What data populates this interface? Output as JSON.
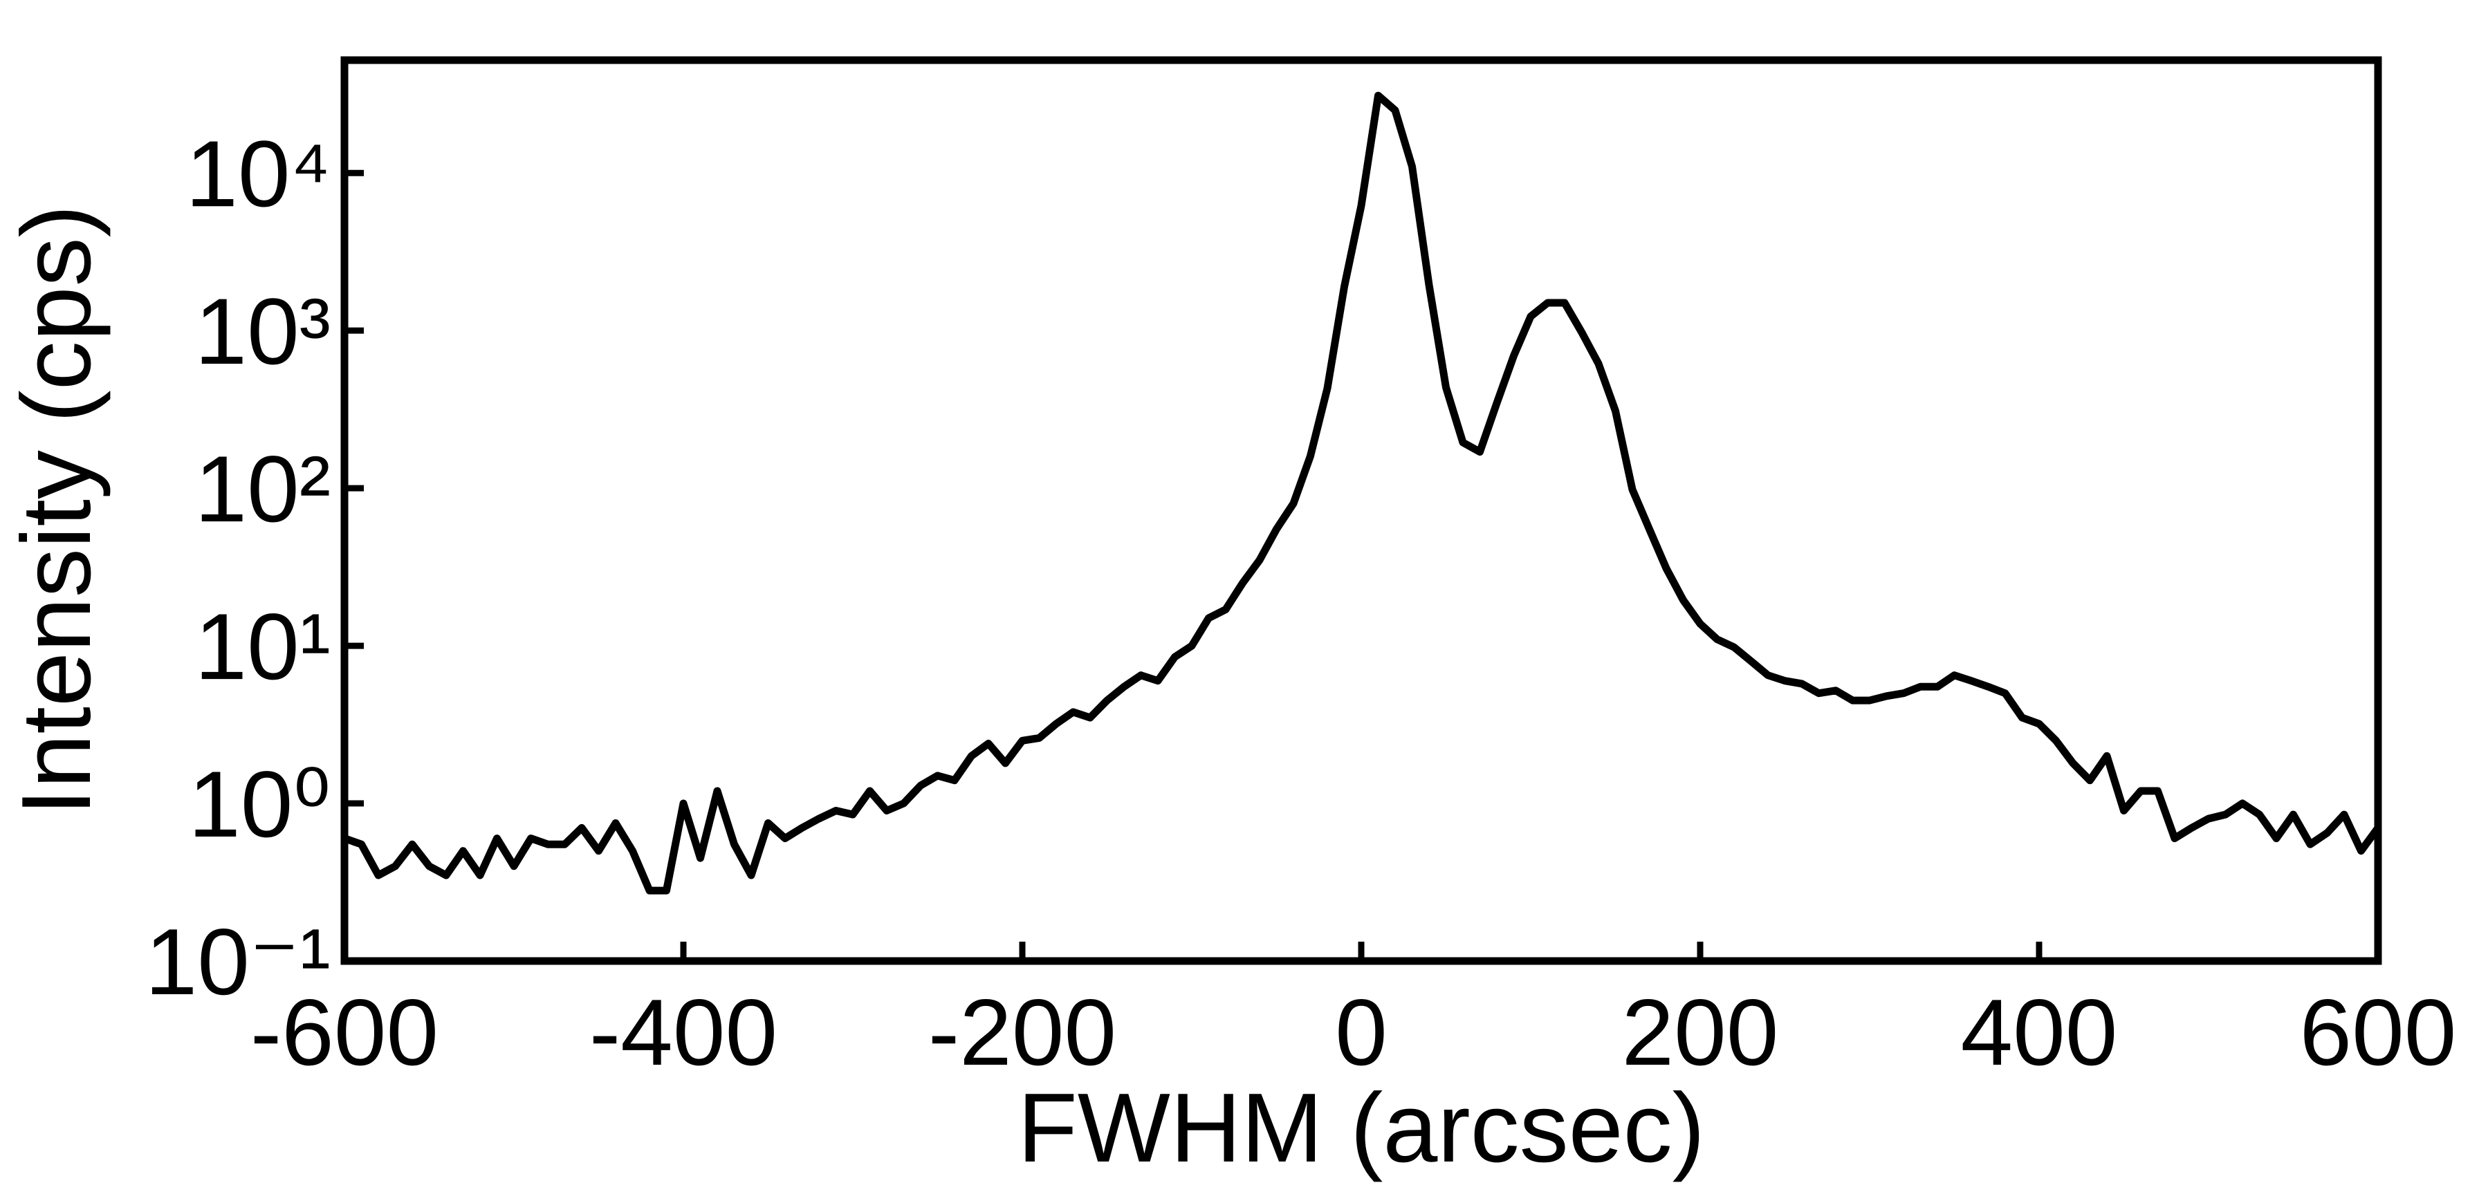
{
  "chart_data": {
    "type": "line",
    "x_label": "FWHM (arcsec)",
    "y_label": "Intensity (cps)",
    "x": [
      -600,
      -590,
      -580,
      -570,
      -560,
      -550,
      -540,
      -530,
      -520,
      -510,
      -500,
      -490,
      -480,
      -470,
      -460,
      -450,
      -440,
      -430,
      -420,
      -410,
      -400,
      -390,
      -380,
      -370,
      -360,
      -350,
      -340,
      -330,
      -320,
      -310,
      -300,
      -290,
      -280,
      -270,
      -260,
      -250,
      -240,
      -230,
      -220,
      -210,
      -200,
      -190,
      -180,
      -170,
      -160,
      -150,
      -140,
      -130,
      -120,
      -110,
      -100,
      -90,
      -80,
      -70,
      -60,
      -50,
      -40,
      -30,
      -20,
      -10,
      0,
      10,
      20,
      30,
      40,
      50,
      60,
      70,
      80,
      90,
      100,
      110,
      120,
      130,
      140,
      150,
      160,
      170,
      180,
      190,
      200,
      210,
      220,
      230,
      240,
      250,
      260,
      270,
      280,
      290,
      300,
      310,
      320,
      330,
      340,
      350,
      360,
      370,
      380,
      390,
      400,
      410,
      420,
      430,
      440,
      450,
      460,
      470,
      480,
      490,
      500,
      510,
      520,
      530,
      540,
      550,
      560,
      570,
      580,
      590,
      600
    ],
    "series": [
      {
        "color": "#000000",
        "values": [
          0.6,
          0.55,
          0.35,
          0.4,
          0.55,
          0.4,
          0.35,
          0.5,
          0.35,
          0.6,
          0.4,
          0.6,
          0.55,
          0.55,
          0.7,
          0.5,
          0.75,
          0.5,
          0.28,
          0.28,
          1.0,
          0.45,
          1.2,
          0.55,
          0.35,
          0.75,
          0.6,
          0.7,
          0.8,
          0.9,
          0.85,
          1.2,
          0.9,
          1.0,
          1.3,
          1.5,
          1.4,
          2.0,
          2.4,
          1.8,
          2.5,
          2.6,
          3.2,
          3.8,
          3.5,
          4.5,
          5.5,
          6.5,
          6.0,
          8.5,
          10,
          15,
          17,
          25,
          35,
          55,
          80,
          160,
          430,
          1900,
          6200,
          31000,
          25000,
          11000,
          1950,
          436,
          195,
          170,
          347,
          692,
          1230,
          1500,
          1500,
          980,
          617,
          309,
          98,
          55,
          31,
          19.5,
          13.8,
          11,
          9.8,
          8,
          6.5,
          6,
          5.75,
          5,
          5.2,
          4.5,
          4.5,
          4.8,
          5,
          5.5,
          5.5,
          6.5,
          6,
          5.5,
          5,
          3.5,
          3.2,
          2.5,
          1.8,
          1.4,
          2.0,
          0.9,
          1.2,
          1.2,
          0.6,
          0.7,
          0.8,
          0.85,
          1.0,
          0.85,
          0.6,
          0.85,
          0.55,
          0.65,
          0.85,
          0.5,
          0.7
        ]
      }
    ],
    "xlim": [
      -600,
      600
    ],
    "xticks": [
      -600,
      -400,
      -200,
      0,
      200,
      400,
      600
    ],
    "ylim": [
      0.1,
      52000
    ],
    "ylog": true,
    "yticks": [
      {
        "value": 0.1,
        "label": "10⁻¹"
      },
      {
        "value": 1,
        "label": "10⁰"
      },
      {
        "value": 10,
        "label": "10¹"
      },
      {
        "value": 100,
        "label": "10²"
      },
      {
        "value": 1000,
        "label": "10³"
      },
      {
        "value": 10000,
        "label": "10⁴"
      }
    ],
    "grid": false
  }
}
